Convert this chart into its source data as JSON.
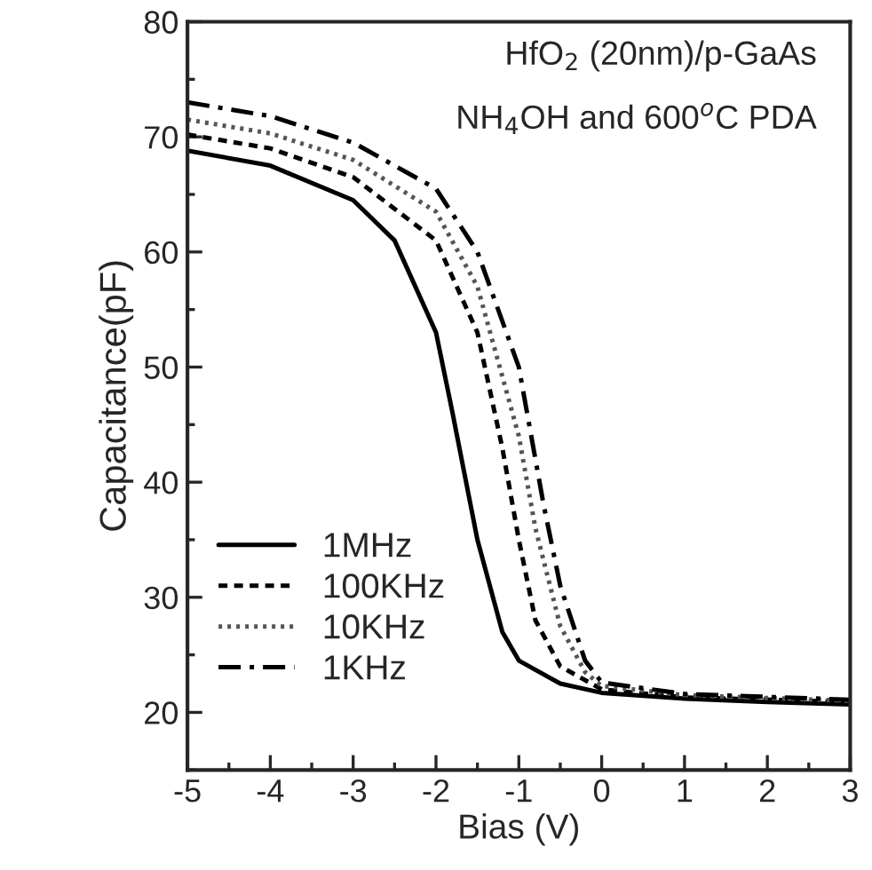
{
  "chart_data": {
    "type": "line",
    "xlabel": "Bias (V)",
    "ylabel": "Capacitance(pF)",
    "xlim": [
      -5,
      3
    ],
    "ylim": [
      15,
      80
    ],
    "xticks": [
      -5,
      -4,
      -3,
      -2,
      -1,
      0,
      1,
      2,
      3
    ],
    "yticks": [
      20,
      30,
      40,
      50,
      60,
      70,
      80
    ],
    "grid": false,
    "legend": "bottom left",
    "marker": "none",
    "annotations": [
      "HfO$_{2}$ (20nm)/p-GaAs",
      "NH$_{4}$OH and 600$^{o}$C PDA"
    ],
    "series": [
      {
        "name": "1MHz",
        "color": "#000000",
        "line_style": "solid",
        "x": [
          -5,
          -4,
          -3,
          -2.5,
          -2,
          -1.8,
          -1.5,
          -1.2,
          -1,
          -0.5,
          0,
          1,
          2,
          3
        ],
        "values": [
          68.8,
          67.5,
          64.5,
          61,
          53,
          46,
          35,
          27,
          24.5,
          22.5,
          21.7,
          21.2,
          20.9,
          20.7
        ]
      },
      {
        "name": "100KHz",
        "color": "#000000",
        "line_style": "dashed",
        "x": [
          -5,
          -4,
          -3,
          -2,
          -1.5,
          -1.2,
          -1,
          -0.8,
          -0.5,
          0,
          1,
          3
        ],
        "values": [
          70.2,
          69,
          66.5,
          61,
          53,
          43,
          35,
          28,
          24,
          22,
          21.3,
          20.9
        ]
      },
      {
        "name": "10KHz",
        "color": "#555555",
        "line_style": "dotted",
        "x": [
          -5,
          -4,
          -3,
          -2,
          -1.5,
          -1,
          -0.8,
          -0.5,
          -0.2,
          0,
          1,
          3
        ],
        "values": [
          71.5,
          70.3,
          68,
          63.5,
          57,
          44,
          36,
          27.5,
          23.5,
          22.3,
          21.5,
          21
        ]
      },
      {
        "name": "1KHz",
        "color": "#000000",
        "line_style": "dashdot",
        "x": [
          -5,
          -4,
          -3,
          -2,
          -1.5,
          -1,
          -0.7,
          -0.5,
          -0.2,
          0,
          1,
          3
        ],
        "values": [
          73,
          71.8,
          69.5,
          65.5,
          60,
          50,
          38,
          31,
          24.5,
          22.6,
          21.6,
          21.1
        ]
      }
    ]
  }
}
